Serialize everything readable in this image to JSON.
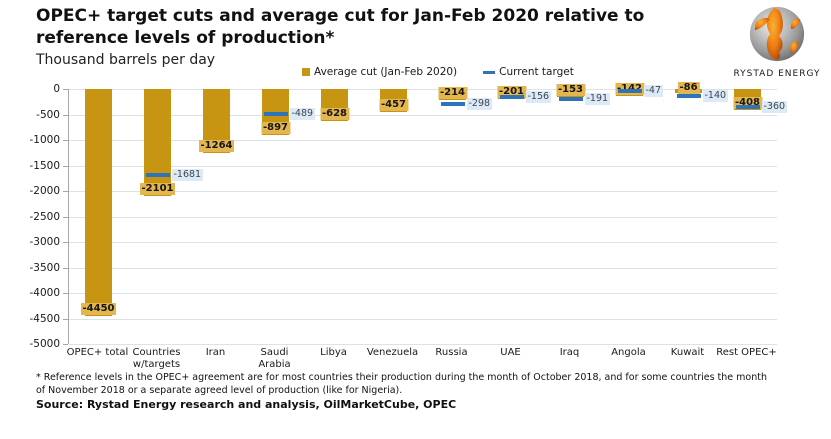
{
  "header": {
    "title": "OPEC+ target cuts and average cut for Jan-Feb 2020 relative to reference levels of production*",
    "subtitle": "Thousand barrels per day"
  },
  "logo": {
    "brand": "RYSTAD ENERGY"
  },
  "legend": {
    "items": [
      {
        "label": "Average cut (Jan-Feb 2020)",
        "marker": "square",
        "color": "#C79512"
      },
      {
        "label": "Current target",
        "marker": "dash",
        "color": "#2E74B8"
      }
    ]
  },
  "chart_data": {
    "type": "bar",
    "categories": [
      "OPEC+ total",
      "Countries w/targets",
      "Iran",
      "Saudi Arabia",
      "Libya",
      "Venezuela",
      "Russia",
      "UAE",
      "Iraq",
      "Angola",
      "Kuwait",
      "Rest OPEC+"
    ],
    "series": [
      {
        "name": "Average cut (Jan-Feb 2020)",
        "type": "bar",
        "color": "#C79512",
        "values": [
          -4450,
          -2101,
          -1264,
          -897,
          -628,
          -457,
          -214,
          -201,
          -153,
          -142,
          -86,
          -408
        ]
      },
      {
        "name": "Current target",
        "type": "tick",
        "color": "#2E74B8",
        "values": [
          null,
          -1681,
          null,
          -489,
          null,
          null,
          -298,
          -156,
          -191,
          -47,
          -140,
          -360
        ]
      }
    ],
    "title": "OPEC+ target cuts and average cut for Jan-Feb 2020 relative to reference levels of production*",
    "ylabel": "Thousand barrels per day",
    "xlabel": "",
    "ylim": [
      -5000,
      0
    ],
    "yticks": [
      0,
      -500,
      -1000,
      -1500,
      -2000,
      -2500,
      -3000,
      -3500,
      -4000,
      -4500,
      -5000
    ],
    "grid": "horizontal",
    "legend_position": "top"
  },
  "footnote": "* Reference levels in the OPEC+ agreement are for most countries their production during the month of October 2018, and for some countries the month of November 2018 or a separate agreed level of production (like for Nigeria).",
  "source": "Source: Rystad Energy research and analysis, OilMarketCube, OPEC"
}
